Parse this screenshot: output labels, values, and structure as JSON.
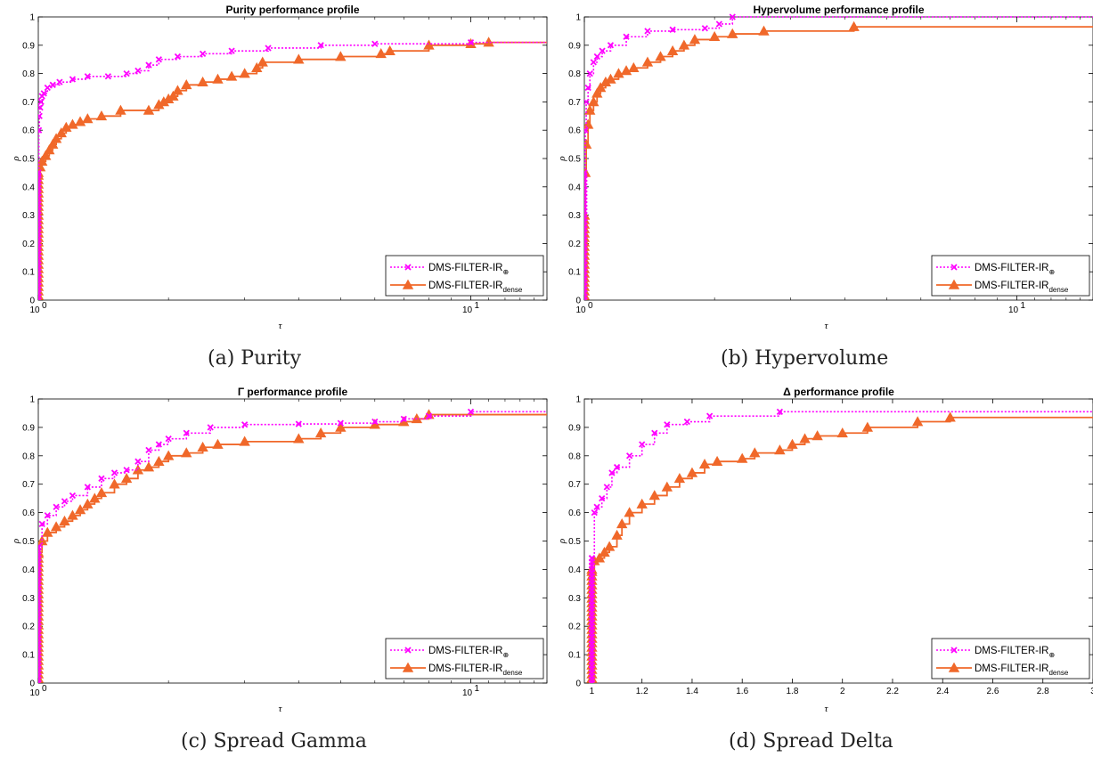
{
  "chart_data": [
    {
      "type": "line",
      "title": "Purity performance profile",
      "caption": "(a) Purity",
      "xlabel": "τ",
      "ylabel": "ρ",
      "xscale": "log",
      "xlim": [
        1,
        15
      ],
      "ylim": [
        0,
        1
      ],
      "xticks": [
        {
          "value": 1,
          "base": "10",
          "exp": "0"
        },
        {
          "value": 10,
          "base": "10",
          "exp": "1"
        }
      ],
      "yticks": [
        "0",
        "0.1",
        "0.2",
        "0.3",
        "0.4",
        "0.5",
        "0.6",
        "0.7",
        "0.8",
        "0.9",
        "1"
      ],
      "legend_position": "bottom-right",
      "series": [
        {
          "name": "DMS-FILTER-IR",
          "name_sub": "⊕",
          "color": "#ff00ff",
          "dash": "2,2",
          "marker": "x",
          "x": [
            1,
            1,
            1.003,
            1.006,
            1.01,
            1.015,
            1.02,
            1.03,
            1.05,
            1.08,
            1.12,
            1.2,
            1.3,
            1.45,
            1.6,
            1.7,
            1.8,
            1.9,
            2.1,
            2.4,
            2.8,
            3.4,
            4.5,
            6,
            10,
            15
          ],
          "y": [
            0,
            0.45,
            0.6,
            0.65,
            0.68,
            0.7,
            0.72,
            0.73,
            0.75,
            0.76,
            0.77,
            0.78,
            0.79,
            0.79,
            0.8,
            0.81,
            0.83,
            0.85,
            0.86,
            0.87,
            0.88,
            0.89,
            0.9,
            0.905,
            0.91,
            0.91
          ]
        },
        {
          "name": "DMS-FILTER-IR",
          "name_sub": "dense",
          "color": "#f0682a",
          "dash": "",
          "marker": "triangle",
          "x": [
            1,
            1,
            1.01,
            1.02,
            1.04,
            1.06,
            1.08,
            1.1,
            1.13,
            1.16,
            1.2,
            1.25,
            1.3,
            1.4,
            1.55,
            1.8,
            1.9,
            1.95,
            2,
            2.05,
            2.1,
            2.2,
            2.4,
            2.6,
            2.8,
            3,
            3.2,
            3.3,
            4,
            5,
            6.2,
            6.5,
            8,
            10,
            11,
            15
          ],
          "y": [
            0,
            0.45,
            0.47,
            0.49,
            0.51,
            0.53,
            0.55,
            0.57,
            0.59,
            0.61,
            0.62,
            0.63,
            0.64,
            0.65,
            0.67,
            0.67,
            0.69,
            0.7,
            0.71,
            0.72,
            0.74,
            0.76,
            0.77,
            0.78,
            0.79,
            0.8,
            0.82,
            0.84,
            0.85,
            0.86,
            0.87,
            0.88,
            0.9,
            0.905,
            0.91,
            0.91
          ]
        }
      ]
    },
    {
      "type": "line",
      "title": "Hypervolume performance profile",
      "caption": "(b) Hypervolume",
      "xlabel": "τ",
      "ylabel": "ρ",
      "xscale": "log",
      "xlim": [
        1,
        15
      ],
      "ylim": [
        0,
        1
      ],
      "xticks": [
        {
          "value": 1,
          "base": "10",
          "exp": "0"
        },
        {
          "value": 10,
          "base": "10",
          "exp": "1"
        }
      ],
      "yticks": [
        "0",
        "0.1",
        "0.2",
        "0.3",
        "0.4",
        "0.5",
        "0.6",
        "0.7",
        "0.8",
        "0.9",
        "1"
      ],
      "legend_position": "bottom-right",
      "series": [
        {
          "name": "DMS-FILTER-IR",
          "name_sub": "⊕",
          "color": "#ff00ff",
          "dash": "2,2",
          "marker": "x",
          "x": [
            1,
            1,
            1.005,
            1.01,
            1.02,
            1.03,
            1.05,
            1.07,
            1.1,
            1.15,
            1.25,
            1.4,
            1.6,
            1.9,
            2.05,
            2.2,
            15
          ],
          "y": [
            0,
            0.45,
            0.6,
            0.7,
            0.75,
            0.8,
            0.84,
            0.86,
            0.88,
            0.9,
            0.93,
            0.95,
            0.955,
            0.96,
            0.975,
            1,
            1
          ]
        },
        {
          "name": "DMS-FILTER-IR",
          "name_sub": "dense",
          "color": "#f0682a",
          "dash": "",
          "marker": "triangle",
          "x": [
            1,
            1,
            1.005,
            1.01,
            1.02,
            1.03,
            1.05,
            1.07,
            1.09,
            1.12,
            1.15,
            1.2,
            1.25,
            1.3,
            1.4,
            1.5,
            1.6,
            1.7,
            1.8,
            2,
            2.2,
            2.6,
            4.2,
            15
          ],
          "y": [
            0,
            0.3,
            0.45,
            0.55,
            0.62,
            0.67,
            0.7,
            0.73,
            0.75,
            0.77,
            0.78,
            0.8,
            0.81,
            0.82,
            0.84,
            0.86,
            0.88,
            0.9,
            0.92,
            0.93,
            0.94,
            0.95,
            0.965,
            0.965
          ]
        }
      ]
    },
    {
      "type": "line",
      "title": "Γ performance profile",
      "caption": "(c) Spread Gamma",
      "xlabel": "τ",
      "ylabel": "ρ",
      "xscale": "log",
      "xlim": [
        1,
        15
      ],
      "ylim": [
        0,
        1
      ],
      "xticks": [
        {
          "value": 1,
          "base": "10",
          "exp": "0"
        },
        {
          "value": 10,
          "base": "10",
          "exp": "1"
        }
      ],
      "yticks": [
        "0",
        "0.1",
        "0.2",
        "0.3",
        "0.4",
        "0.5",
        "0.6",
        "0.7",
        "0.8",
        "0.9",
        "1"
      ],
      "legend_position": "bottom-right",
      "series": [
        {
          "name": "DMS-FILTER-IR",
          "name_sub": "⊕",
          "color": "#ff00ff",
          "dash": "2,2",
          "marker": "x",
          "x": [
            1,
            1,
            1.02,
            1.05,
            1.1,
            1.15,
            1.2,
            1.3,
            1.4,
            1.5,
            1.6,
            1.7,
            1.8,
            1.9,
            2,
            2.2,
            2.5,
            3,
            4,
            5,
            6,
            7,
            8,
            10,
            15
          ],
          "y": [
            0,
            0.48,
            0.56,
            0.59,
            0.62,
            0.64,
            0.66,
            0.69,
            0.72,
            0.74,
            0.75,
            0.78,
            0.82,
            0.84,
            0.86,
            0.88,
            0.9,
            0.91,
            0.912,
            0.915,
            0.92,
            0.93,
            0.94,
            0.955,
            0.955
          ]
        },
        {
          "name": "DMS-FILTER-IR",
          "name_sub": "dense",
          "color": "#f0682a",
          "dash": "",
          "marker": "triangle",
          "x": [
            1,
            1,
            1.02,
            1.05,
            1.1,
            1.15,
            1.2,
            1.25,
            1.3,
            1.35,
            1.4,
            1.5,
            1.6,
            1.7,
            1.8,
            1.9,
            2,
            2.2,
            2.4,
            2.6,
            3,
            4,
            4.5,
            5,
            6,
            7,
            7.5,
            8,
            15
          ],
          "y": [
            0,
            0.46,
            0.5,
            0.53,
            0.55,
            0.57,
            0.59,
            0.61,
            0.63,
            0.65,
            0.67,
            0.7,
            0.72,
            0.75,
            0.76,
            0.78,
            0.8,
            0.81,
            0.83,
            0.84,
            0.85,
            0.86,
            0.88,
            0.9,
            0.91,
            0.92,
            0.93,
            0.945,
            0.945
          ]
        }
      ]
    },
    {
      "type": "line",
      "title": "Δ performance profile",
      "caption": "(d) Spread Delta",
      "xlabel": "τ",
      "ylabel": "ρ",
      "xscale": "linear",
      "xlim": [
        0.97,
        3
      ],
      "ylim": [
        0,
        1
      ],
      "xticks": [
        {
          "value": 1,
          "label": "1"
        },
        {
          "value": 1.2,
          "label": "1.2"
        },
        {
          "value": 1.4,
          "label": "1.4"
        },
        {
          "value": 1.6,
          "label": "1.6"
        },
        {
          "value": 1.8,
          "label": "1.8"
        },
        {
          "value": 2,
          "label": "2"
        },
        {
          "value": 2.2,
          "label": "2.2"
        },
        {
          "value": 2.4,
          "label": "2.4"
        },
        {
          "value": 2.6,
          "label": "2.6"
        },
        {
          "value": 2.8,
          "label": "2.8"
        },
        {
          "value": 3,
          "label": "3"
        }
      ],
      "yticks": [
        "0",
        "0.1",
        "0.2",
        "0.3",
        "0.4",
        "0.5",
        "0.6",
        "0.7",
        "0.8",
        "0.9",
        "1"
      ],
      "legend_position": "bottom-right",
      "series": [
        {
          "name": "DMS-FILTER-IR",
          "name_sub": "⊕",
          "color": "#ff00ff",
          "dash": "2,2",
          "marker": "x",
          "x": [
            1,
            1,
            1.01,
            1.02,
            1.04,
            1.06,
            1.08,
            1.1,
            1.15,
            1.2,
            1.25,
            1.3,
            1.38,
            1.47,
            1.75,
            3
          ],
          "y": [
            0,
            0.44,
            0.6,
            0.62,
            0.65,
            0.69,
            0.74,
            0.76,
            0.8,
            0.84,
            0.88,
            0.91,
            0.92,
            0.94,
            0.955,
            0.955
          ]
        },
        {
          "name": "DMS-FILTER-IR",
          "name_sub": "dense",
          "color": "#f0682a",
          "dash": "",
          "marker": "triangle",
          "x": [
            1,
            1,
            1.01,
            1.03,
            1.05,
            1.07,
            1.1,
            1.12,
            1.15,
            1.2,
            1.25,
            1.3,
            1.35,
            1.4,
            1.45,
            1.5,
            1.6,
            1.65,
            1.75,
            1.8,
            1.85,
            1.9,
            2,
            2.1,
            2.3,
            2.43,
            3
          ],
          "y": [
            0,
            0.4,
            0.43,
            0.44,
            0.46,
            0.48,
            0.52,
            0.56,
            0.6,
            0.63,
            0.66,
            0.69,
            0.72,
            0.74,
            0.77,
            0.78,
            0.79,
            0.81,
            0.82,
            0.84,
            0.86,
            0.87,
            0.88,
            0.9,
            0.92,
            0.935,
            0.935
          ]
        }
      ]
    }
  ]
}
